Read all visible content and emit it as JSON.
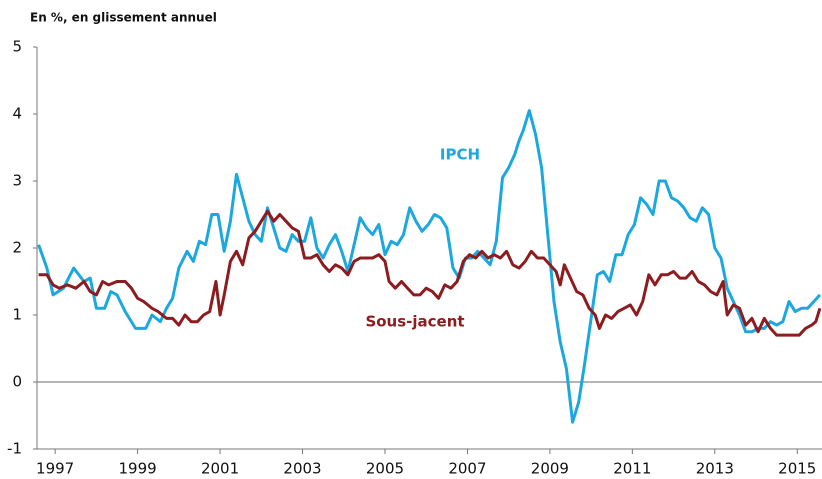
{
  "chart_data": {
    "type": "line",
    "title": "En %, en glissement annuel",
    "xlim": [
      1996.56,
      2015.6
    ],
    "xticks": [
      1997,
      1999,
      2001,
      2003,
      2005,
      2007,
      2009,
      2011,
      2013,
      2015
    ],
    "ylim": [
      -1,
      5
    ],
    "yticks": [
      5,
      4,
      3,
      2,
      1,
      0,
      -1
    ],
    "series": [
      {
        "name": "IPCH",
        "color": "#1ca8de",
        "x": [
          1996.6,
          1996.8,
          1996.95,
          1997.2,
          1997.45,
          1997.7,
          1997.85,
          1998.0,
          1998.2,
          1998.35,
          1998.5,
          1998.7,
          1998.95,
          1999.2,
          1999.35,
          1999.55,
          1999.7,
          1999.85,
          2000.0,
          2000.2,
          2000.35,
          2000.5,
          2000.65,
          2000.8,
          2000.95,
          2001.1,
          2001.25,
          2001.4,
          2001.55,
          2001.7,
          2001.85,
          2002.0,
          2002.15,
          2002.3,
          2002.45,
          2002.6,
          2002.75,
          2002.9,
          2003.05,
          2003.2,
          2003.35,
          2003.5,
          2003.65,
          2003.8,
          2003.95,
          2004.1,
          2004.25,
          2004.4,
          2004.55,
          2004.7,
          2004.85,
          2005.0,
          2005.15,
          2005.3,
          2005.45,
          2005.6,
          2005.75,
          2005.9,
          2006.05,
          2006.2,
          2006.35,
          2006.5,
          2006.65,
          2006.8,
          2006.95,
          2007.1,
          2007.25,
          2007.4,
          2007.55,
          2007.7,
          2007.85,
          2008.0,
          2008.15,
          2008.25,
          2008.35,
          2008.5,
          2008.65,
          2008.8,
          2008.95,
          2009.1,
          2009.25,
          2009.4,
          2009.55,
          2009.7,
          2009.85,
          2010.0,
          2010.15,
          2010.3,
          2010.45,
          2010.6,
          2010.75,
          2010.9,
          2011.05,
          2011.2,
          2011.35,
          2011.5,
          2011.65,
          2011.8,
          2011.95,
          2012.1,
          2012.25,
          2012.4,
          2012.55,
          2012.7,
          2012.85,
          2013.0,
          2013.15,
          2013.3,
          2013.45,
          2013.6,
          2013.75,
          2013.9,
          2014.05,
          2014.2,
          2014.35,
          2014.5,
          2014.65,
          2014.8,
          2014.95,
          2015.1,
          2015.25,
          2015.4,
          2015.55
        ],
        "values": [
          2.05,
          1.7,
          1.3,
          1.4,
          1.7,
          1.5,
          1.55,
          1.1,
          1.1,
          1.35,
          1.3,
          1.05,
          0.8,
          0.8,
          1.0,
          0.9,
          1.1,
          1.25,
          1.7,
          1.95,
          1.8,
          2.1,
          2.05,
          2.5,
          2.5,
          1.95,
          2.4,
          3.1,
          2.75,
          2.4,
          2.2,
          2.1,
          2.6,
          2.3,
          2.0,
          1.95,
          2.2,
          2.1,
          2.1,
          2.45,
          2.0,
          1.85,
          2.05,
          2.2,
          1.95,
          1.65,
          2.05,
          2.45,
          2.3,
          2.2,
          2.35,
          1.9,
          2.1,
          2.05,
          2.2,
          2.6,
          2.4,
          2.25,
          2.35,
          2.5,
          2.45,
          2.3,
          1.7,
          1.55,
          1.85,
          1.85,
          1.95,
          1.85,
          1.75,
          2.1,
          3.05,
          3.2,
          3.4,
          3.6,
          3.75,
          4.05,
          3.7,
          3.2,
          2.2,
          1.2,
          0.6,
          0.2,
          -0.6,
          -0.3,
          0.3,
          0.95,
          1.6,
          1.65,
          1.5,
          1.9,
          1.9,
          2.2,
          2.35,
          2.75,
          2.65,
          2.5,
          3.0,
          3.0,
          2.75,
          2.7,
          2.6,
          2.45,
          2.4,
          2.6,
          2.5,
          2.0,
          1.85,
          1.4,
          1.2,
          1.0,
          0.75,
          0.75,
          0.8,
          0.8,
          0.9,
          0.85,
          0.9,
          1.2,
          1.05,
          1.1,
          1.1,
          1.2,
          1.3
        ]
      },
      {
        "name": "Sous-jacent",
        "color": "#8c1c1f",
        "x": [
          1996.6,
          1996.8,
          1996.95,
          1997.1,
          1997.3,
          1997.5,
          1997.7,
          1997.85,
          1998.0,
          1998.15,
          1998.3,
          1998.5,
          1998.7,
          1998.85,
          1999.0,
          1999.15,
          1999.35,
          1999.5,
          1999.7,
          1999.85,
          2000.0,
          2000.15,
          2000.3,
          2000.45,
          2000.6,
          2000.75,
          2000.9,
          2001.0,
          2001.1,
          2001.25,
          2001.4,
          2001.55,
          2001.7,
          2001.85,
          2002.0,
          2002.15,
          2002.3,
          2002.45,
          2002.6,
          2002.75,
          2002.9,
          2003.05,
          2003.2,
          2003.35,
          2003.5,
          2003.65,
          2003.8,
          2003.95,
          2004.1,
          2004.25,
          2004.4,
          2004.55,
          2004.7,
          2004.85,
          2005.0,
          2005.1,
          2005.25,
          2005.4,
          2005.55,
          2005.7,
          2005.85,
          2006.0,
          2006.15,
          2006.3,
          2006.45,
          2006.6,
          2006.75,
          2006.9,
          2007.05,
          2007.2,
          2007.35,
          2007.5,
          2007.65,
          2007.8,
          2007.95,
          2008.1,
          2008.25,
          2008.4,
          2008.55,
          2008.7,
          2008.85,
          2009.0,
          2009.15,
          2009.25,
          2009.35,
          2009.5,
          2009.65,
          2009.8,
          2009.95,
          2010.1,
          2010.2,
          2010.35,
          2010.5,
          2010.65,
          2010.8,
          2010.95,
          2011.1,
          2011.25,
          2011.4,
          2011.55,
          2011.7,
          2011.85,
          2012.0,
          2012.15,
          2012.3,
          2012.45,
          2012.6,
          2012.75,
          2012.9,
          2013.05,
          2013.2,
          2013.3,
          2013.45,
          2013.6,
          2013.75,
          2013.9,
          2014.05,
          2014.2,
          2014.35,
          2014.5,
          2014.8,
          2015.05,
          2015.2,
          2015.35,
          2015.45,
          2015.55
        ],
        "values": [
          1.6,
          1.6,
          1.45,
          1.4,
          1.45,
          1.4,
          1.5,
          1.35,
          1.3,
          1.5,
          1.45,
          1.5,
          1.5,
          1.4,
          1.25,
          1.2,
          1.1,
          1.05,
          0.95,
          0.95,
          0.85,
          1.0,
          0.9,
          0.9,
          1.0,
          1.05,
          1.5,
          1.0,
          1.3,
          1.8,
          1.95,
          1.75,
          2.15,
          2.25,
          2.4,
          2.55,
          2.4,
          2.5,
          2.4,
          2.3,
          2.25,
          1.85,
          1.85,
          1.9,
          1.75,
          1.65,
          1.75,
          1.7,
          1.6,
          1.8,
          1.85,
          1.85,
          1.85,
          1.9,
          1.8,
          1.5,
          1.4,
          1.5,
          1.4,
          1.3,
          1.3,
          1.4,
          1.35,
          1.25,
          1.45,
          1.4,
          1.5,
          1.8,
          1.9,
          1.85,
          1.95,
          1.85,
          1.9,
          1.85,
          1.95,
          1.75,
          1.7,
          1.8,
          1.95,
          1.85,
          1.85,
          1.75,
          1.65,
          1.45,
          1.75,
          1.55,
          1.35,
          1.3,
          1.1,
          1.0,
          0.8,
          1.0,
          0.95,
          1.05,
          1.1,
          1.15,
          1.0,
          1.2,
          1.6,
          1.45,
          1.6,
          1.6,
          1.65,
          1.55,
          1.55,
          1.65,
          1.5,
          1.45,
          1.35,
          1.3,
          1.5,
          1.0,
          1.15,
          1.1,
          0.85,
          0.95,
          0.75,
          0.95,
          0.8,
          0.7,
          0.7,
          0.7,
          0.8,
          0.85,
          0.9,
          1.1
        ]
      }
    ]
  }
}
